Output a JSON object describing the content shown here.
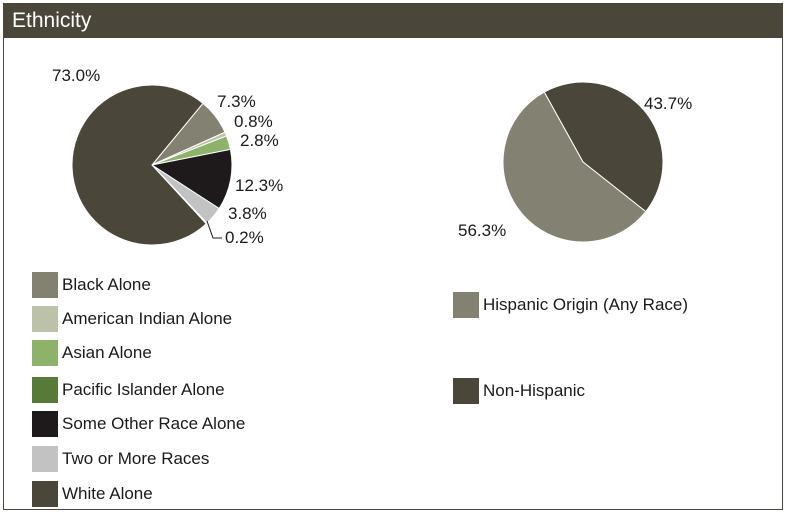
{
  "header": {
    "title": "Ethnicity"
  },
  "chart_data": [
    {
      "type": "pie",
      "title": "",
      "slices": [
        {
          "name": "Black Alone",
          "value": 7.3,
          "label": "7.3%",
          "color": "#838171"
        },
        {
          "name": "American Indian Alone",
          "value": 0.8,
          "label": "0.8%",
          "color": "#bcc2a9"
        },
        {
          "name": "Asian Alone",
          "value": 2.8,
          "label": "2.8%",
          "color": "#8fb26a"
        },
        {
          "name": "Pacific Islander Alone",
          "value": 0.0,
          "label": "",
          "color": "#577a38"
        },
        {
          "name": "Some Other Race Alone",
          "value": 12.3,
          "label": "12.3%",
          "color": "#1e1a1b"
        },
        {
          "name": "Two or More Races",
          "value": 3.8,
          "label": "3.8%",
          "color": "#c2c2c2"
        },
        {
          "name": "Two or More Races (sliver)",
          "value": 0.2,
          "label": "0.2%",
          "color": "#577a38"
        },
        {
          "name": "White Alone",
          "value": 73.0,
          "label": "73.0%",
          "color": "#4a463a"
        }
      ],
      "legend": [
        {
          "label": "Black Alone",
          "color": "#838171"
        },
        {
          "label": "American Indian Alone",
          "color": "#bcc2a9"
        },
        {
          "label": "Asian Alone",
          "color": "#8fb26a"
        },
        {
          "label": "Pacific Islander Alone",
          "color": "#577a38"
        },
        {
          "label": "Some Other Race Alone",
          "color": "#1e1a1b"
        },
        {
          "label": "Two or More Races",
          "color": "#c2c2c2"
        },
        {
          "label": "White Alone",
          "color": "#4a463a"
        }
      ]
    },
    {
      "type": "pie",
      "title": "",
      "slices": [
        {
          "name": "Non-Hispanic",
          "value": 43.7,
          "label": "43.7%",
          "color": "#4a463a"
        },
        {
          "name": "Hispanic Origin (Any Race)",
          "value": 56.3,
          "label": "56.3%",
          "color": "#838171"
        }
      ],
      "legend": [
        {
          "label": "Hispanic Origin (Any Race)",
          "color": "#838171"
        },
        {
          "label": "Non-Hispanic",
          "color": "#4a463a"
        }
      ]
    }
  ]
}
